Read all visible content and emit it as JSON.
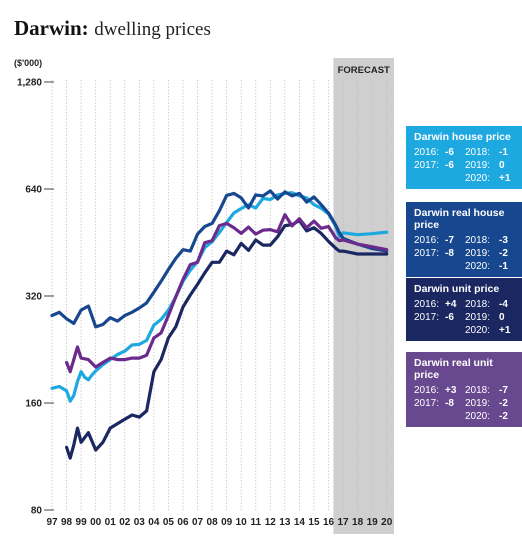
{
  "title": "Darwin:",
  "subtitle": "dwelling prices",
  "chart_data": {
    "type": "line",
    "ylabel": "($'000)",
    "y_scale": "log",
    "ylim": [
      80,
      1280
    ],
    "yticks": [
      80,
      160,
      320,
      640,
      1280
    ],
    "ytick_labels": [
      "80",
      "160",
      "320",
      "640",
      "1,280"
    ],
    "xlim": [
      1997,
      2020.5
    ],
    "xtick_labels": [
      "97",
      "98",
      "99",
      "00",
      "01",
      "02",
      "03",
      "04",
      "05",
      "06",
      "07",
      "08",
      "09",
      "10",
      "11",
      "12",
      "13",
      "14",
      "15",
      "16",
      "17",
      "18",
      "19",
      "20"
    ],
    "forecast_label": "FORECAST",
    "forecast_start": 2016.75,
    "grid": "vertical dotted",
    "series": [
      {
        "name": "Darwin house price",
        "color": "#1ea8e0",
        "x": [
          1997,
          1997.5,
          1998,
          1998.25,
          1998.5,
          1998.75,
          1999,
          1999.25,
          1999.5,
          1999.75,
          2000,
          2000.5,
          2001,
          2001.5,
          2002,
          2002.5,
          2003,
          2003.5,
          2004,
          2004.5,
          2005,
          2005.5,
          2006,
          2006.5,
          2007,
          2007.5,
          2008,
          2008.5,
          2009,
          2009.5,
          2010,
          2010.5,
          2011,
          2011.5,
          2012,
          2012.5,
          2013,
          2013.5,
          2014,
          2014.5,
          2015,
          2015.5,
          2016,
          2016.5,
          2016.75,
          2017,
          2018,
          2019,
          2020
        ],
        "y": [
          176,
          178,
          173,
          162,
          168,
          184,
          196,
          189,
          186,
          192,
          197,
          205,
          212,
          219,
          224,
          233,
          234,
          240,
          265,
          275,
          292,
          318,
          352,
          378,
          400,
          438,
          455,
          483,
          515,
          548,
          564,
          578,
          566,
          602,
          598,
          616,
          622,
          625,
          612,
          604,
          578,
          565,
          545,
          502,
          470,
          482,
          476,
          479,
          484
        ]
      },
      {
        "name": "Darwin real house price",
        "color": "#17478e",
        "x": [
          1997,
          1997.5,
          1998,
          1998.5,
          1999,
          1999.5,
          2000,
          2000.5,
          2001,
          2001.5,
          2002,
          2002.5,
          2003,
          2003.5,
          2004,
          2004.5,
          2005,
          2005.5,
          2006,
          2006.5,
          2007,
          2007.5,
          2008,
          2008.5,
          2009,
          2009.5,
          2010,
          2010.5,
          2011,
          2011.5,
          2012,
          2012.5,
          2013,
          2013.5,
          2014,
          2014.5,
          2015,
          2015.5,
          2016,
          2016.5,
          2016.75,
          2017,
          2018,
          2019,
          2020
        ],
        "y": [
          282,
          288,
          276,
          268,
          292,
          300,
          262,
          266,
          278,
          272,
          282,
          288,
          296,
          306,
          328,
          352,
          380,
          408,
          432,
          428,
          478,
          502,
          512,
          556,
          614,
          622,
          604,
          566,
          616,
          612,
          632,
          600,
          628,
          612,
          622,
          588,
          608,
          578,
          548,
          506,
          482,
          465,
          448,
          435,
          428
        ]
      },
      {
        "name": "Darwin unit price",
        "color": "#1b2760",
        "x": [
          1998,
          1998.25,
          1998.5,
          1998.75,
          1999,
          1999.5,
          2000,
          2000.5,
          2001,
          2001.5,
          2002,
          2002.5,
          2003,
          2003.5,
          2004,
          2004.5,
          2005,
          2005.5,
          2006,
          2006.5,
          2007,
          2007.5,
          2008,
          2008.5,
          2009,
          2009.5,
          2010,
          2010.5,
          2011,
          2011.5,
          2012,
          2012.5,
          2013,
          2013.5,
          2014,
          2014.5,
          2015,
          2015.5,
          2016,
          2016.5,
          2016.75,
          2017,
          2018,
          2019,
          2020
        ],
        "y": [
          120,
          112,
          122,
          136,
          124,
          132,
          118,
          124,
          136,
          140,
          144,
          148,
          146,
          152,
          196,
          212,
          244,
          262,
          298,
          322,
          345,
          372,
          398,
          398,
          428,
          418,
          450,
          430,
          460,
          445,
          445,
          470,
          505,
          508,
          522,
          488,
          498,
          480,
          456,
          436,
          428,
          428,
          420,
          420,
          420
        ]
      },
      {
        "name": "Darwin real unit price",
        "color": "#6a2b8c",
        "x": [
          1998,
          1998.25,
          1998.5,
          1998.75,
          1999,
          1999.5,
          2000,
          2000.5,
          2001,
          2001.5,
          2002,
          2002.5,
          2003,
          2003.5,
          2004,
          2004.5,
          2005,
          2005.5,
          2006,
          2006.5,
          2007,
          2007.5,
          2008,
          2008.5,
          2009,
          2009.5,
          2010,
          2010.5,
          2011,
          2011.5,
          2012,
          2012.5,
          2013,
          2013.5,
          2014,
          2014.5,
          2015,
          2015.5,
          2016,
          2016.5,
          2016.75,
          2017,
          2018,
          2019,
          2020
        ],
        "y": [
          208,
          196,
          212,
          230,
          214,
          212,
          202,
          208,
          214,
          212,
          212,
          214,
          214,
          218,
          244,
          252,
          282,
          318,
          356,
          392,
          398,
          452,
          458,
          505,
          512,
          498,
          480,
          500,
          478,
          490,
          492,
          485,
          542,
          504,
          528,
          498,
          520,
          496,
          502,
          466,
          458,
          460,
          448,
          440,
          432
        ]
      }
    ]
  },
  "legend_boxes": [
    {
      "title": "Darwin house price",
      "color": "#1ea8e0",
      "rows": [
        [
          "2016:",
          "-6",
          "2018:",
          "-1"
        ],
        [
          "2017:",
          "-6",
          "2019:",
          "0"
        ],
        [
          "",
          "",
          "2020:",
          "+1"
        ]
      ]
    },
    {
      "title": "Darwin real house price",
      "color": "#17478e",
      "rows": [
        [
          "2016:",
          "-7",
          "2018:",
          "-3"
        ],
        [
          "2017:",
          "-8",
          "2019:",
          "-2"
        ],
        [
          "",
          "",
          "2020:",
          "-1"
        ]
      ]
    },
    {
      "title": "Darwin unit price",
      "color": "#1b2760",
      "rows": [
        [
          "2016:",
          "+4",
          "2018:",
          "-4"
        ],
        [
          "2017:",
          "-6",
          "2019:",
          "0"
        ],
        [
          "",
          "",
          "2020:",
          "+1"
        ]
      ]
    },
    {
      "title": "Darwin real unit price",
      "color": "#68488f",
      "rows": [
        [
          "2016:",
          "+3",
          "2018:",
          "-7"
        ],
        [
          "2017:",
          "-8",
          "2019:",
          "-2"
        ],
        [
          "",
          "",
          "2020:",
          "-2"
        ]
      ]
    }
  ]
}
